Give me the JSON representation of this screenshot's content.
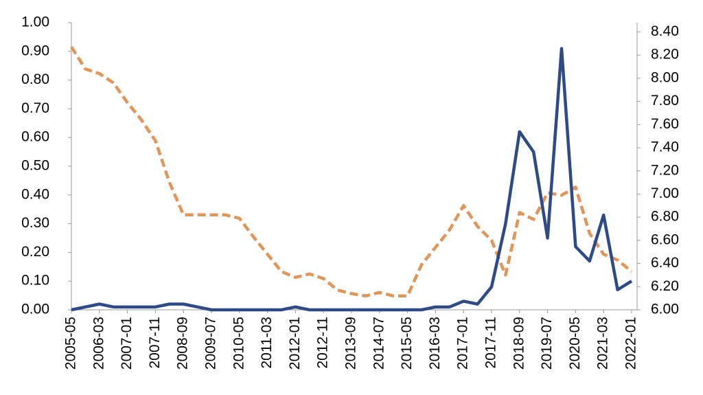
{
  "chart_data": {
    "type": "line",
    "categories": [
      "2005-05",
      null,
      "2006-03",
      null,
      "2007-01",
      null,
      "2007-11",
      null,
      "2008-09",
      null,
      "2009-07",
      null,
      "2010-05",
      null,
      "2011-03",
      null,
      "2012-01",
      null,
      "2012-11",
      null,
      "2013-09",
      null,
      "2014-07",
      null,
      "2015-05",
      null,
      "2016-03",
      null,
      "2017-01",
      null,
      "2017-11",
      null,
      "2018-09",
      null,
      "2019-07",
      null,
      "2020-05",
      null,
      "2021-03",
      null,
      "2022-01"
    ],
    "series": [
      {
        "color": "#2e4a87",
        "style": "solid",
        "values": [
          0,
          0.01,
          0.02,
          0.01,
          0.01,
          0.01,
          0.01,
          0.02,
          0.02,
          0.01,
          0,
          0,
          0,
          0,
          0,
          0,
          0.01,
          0,
          0,
          0,
          0,
          0,
          0,
          0,
          0,
          0,
          0.01,
          0.01,
          0.03,
          0.02,
          0.08,
          0.3,
          0.62,
          0.55,
          0.25,
          0.91,
          0.22,
          0.17,
          0.33,
          0.07,
          0.1
        ]
      },
      {
        "color": "#e0955a",
        "style": "dashed",
        "axis": "y2",
        "values": [
          8.27,
          8.08,
          8.04,
          7.96,
          7.79,
          7.64,
          7.46,
          7.1,
          6.82,
          6.82,
          6.82,
          6.82,
          6.79,
          6.63,
          6.48,
          6.33,
          6.28,
          6.31,
          6.27,
          6.17,
          6.14,
          6.12,
          6.15,
          6.12,
          6.12,
          6.39,
          6.54,
          6.69,
          6.9,
          6.72,
          6.6,
          6.3,
          6.84,
          6.78,
          7.01,
          6.99,
          7.06,
          6.66,
          6.48,
          6.43,
          6.33
        ]
      }
    ],
    "ylim": [
      0,
      1
    ],
    "yticks": [
      {
        "value": 0,
        "label": "0.00"
      },
      {
        "value": 0.1,
        "label": "0.10"
      },
      {
        "value": 0.2,
        "label": "0.20"
      },
      {
        "value": 0.3,
        "label": "0.30"
      },
      {
        "value": 0.4,
        "label": "0.40"
      },
      {
        "value": 0.5,
        "label": "0.50"
      },
      {
        "value": 0.6,
        "label": "0.60"
      },
      {
        "value": 0.7,
        "label": "0.70"
      },
      {
        "value": 0.8,
        "label": "0.80"
      },
      {
        "value": 0.9,
        "label": "0.90"
      },
      {
        "value": 1,
        "label": "1.00"
      }
    ],
    "y2lim": [
      6,
      8.48
    ],
    "y2ticks": [
      {
        "value": 6,
        "label": "6.00"
      },
      {
        "value": 6.2,
        "label": "6.20"
      },
      {
        "value": 6.4,
        "label": "6.40"
      },
      {
        "value": 6.6,
        "label": "6.60"
      },
      {
        "value": 6.8,
        "label": "6.80"
      },
      {
        "value": 7,
        "label": "7.00"
      },
      {
        "value": 7.2,
        "label": "7.20"
      },
      {
        "value": 7.4,
        "label": "7.40"
      },
      {
        "value": 7.6,
        "label": "7.60"
      },
      {
        "value": 7.8,
        "label": "7.80"
      },
      {
        "value": 8,
        "label": "8.00"
      },
      {
        "value": 8.2,
        "label": "8.20"
      },
      {
        "value": 8.4,
        "label": "8.40"
      }
    ]
  }
}
